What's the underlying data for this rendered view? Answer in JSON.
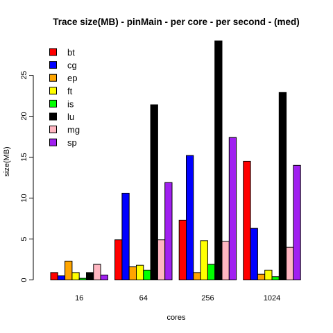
{
  "chart_data": {
    "type": "bar",
    "title": "Trace size(MB) - pinMain - per core - per second - (med)",
    "xlabel": "cores",
    "ylabel": "size(MB)",
    "categories": [
      "16",
      "64",
      "256",
      "1024"
    ],
    "ylim": [
      0,
      29.2
    ],
    "yticks": [
      0,
      5,
      10,
      15,
      20,
      25
    ],
    "grid": false,
    "legend_position": "top-left",
    "series": [
      {
        "name": "bt",
        "color": "#ff0000",
        "values": [
          0.9,
          4.9,
          7.3,
          14.5
        ]
      },
      {
        "name": "cg",
        "color": "#0000ff",
        "values": [
          0.5,
          10.6,
          15.2,
          6.3
        ]
      },
      {
        "name": "ep",
        "color": "#ffa500",
        "values": [
          2.3,
          1.6,
          0.9,
          0.7
        ]
      },
      {
        "name": "ft",
        "color": "#ffff00",
        "values": [
          0.9,
          1.8,
          4.8,
          1.2
        ]
      },
      {
        "name": "is",
        "color": "#00ff00",
        "values": [
          0.2,
          1.2,
          1.9,
          0.4
        ]
      },
      {
        "name": "lu",
        "color": "#000000",
        "values": [
          0.9,
          21.4,
          29.2,
          22.9
        ]
      },
      {
        "name": "mg",
        "color": "#ffb6c1",
        "values": [
          1.9,
          4.9,
          4.7,
          4.0
        ]
      },
      {
        "name": "sp",
        "color": "#a020f0",
        "values": [
          0.6,
          11.9,
          17.4,
          14.0
        ]
      }
    ]
  }
}
